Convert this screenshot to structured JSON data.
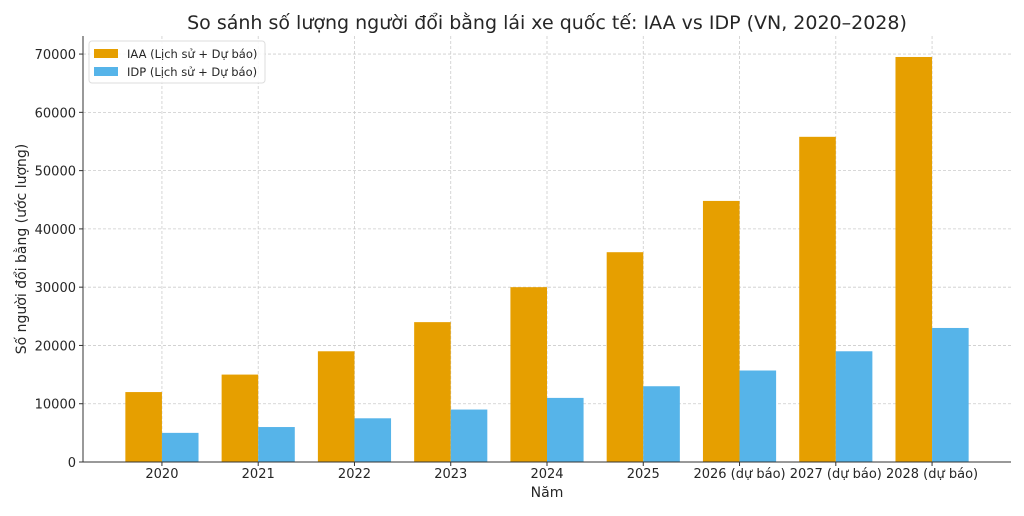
{
  "chart_data": {
    "type": "bar",
    "title": "So sánh số lượng người đổi bằng lái xe quốc tế: IAA vs IDP (VN, 2020–2028)",
    "xlabel": "Năm",
    "ylabel": "Số người đổi bằng (ước lượng)",
    "categories": [
      "2020",
      "2021",
      "2022",
      "2023",
      "2024",
      "2025",
      "2026 (dự báo)",
      "2027 (dự báo)",
      "2028 (dự báo)"
    ],
    "series": [
      {
        "name": "IAA (Lịch sử + Dự báo)",
        "color": "#E69F00",
        "values": [
          12000,
          15000,
          19000,
          24000,
          30000,
          36000,
          44800,
          55800,
          69500
        ]
      },
      {
        "name": "IDP (Lịch sử + Dự báo)",
        "color": "#56B4E9",
        "values": [
          5000,
          6000,
          7500,
          9000,
          11000,
          13000,
          15700,
          19000,
          23000
        ]
      }
    ],
    "ylim": [
      0,
      73100
    ],
    "yticks": [
      0,
      10000,
      20000,
      30000,
      40000,
      50000,
      60000,
      70000
    ],
    "grid": true,
    "legend_position": "top-left"
  }
}
